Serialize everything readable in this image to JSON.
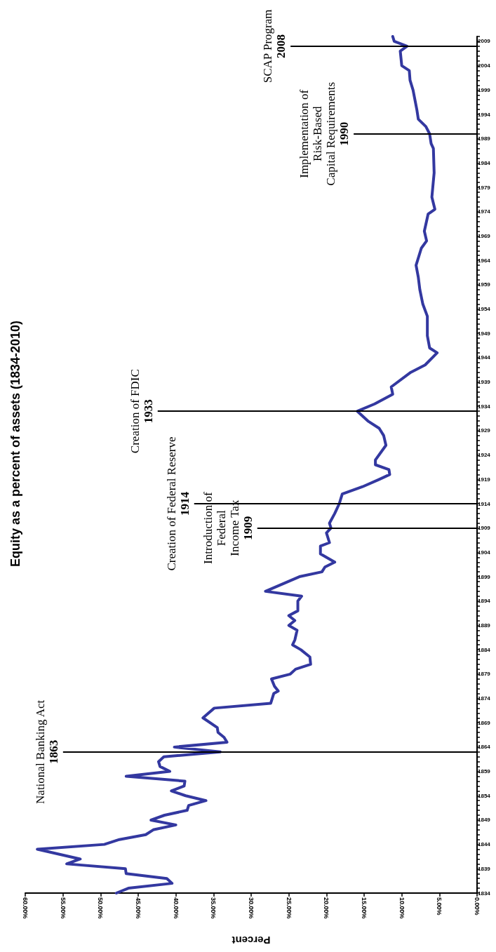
{
  "chart_data": {
    "type": "line",
    "title": "Equity as a percent of assets (1834-2010)",
    "xlabel": "Percent",
    "ylim": [
      1834,
      2010
    ],
    "yticks": [
      1834,
      1839,
      1844,
      1849,
      1854,
      1859,
      1864,
      1869,
      1874,
      1879,
      1884,
      1889,
      1894,
      1899,
      1904,
      1909,
      1914,
      1919,
      1924,
      1929,
      1934,
      1939,
      1944,
      1949,
      1954,
      1959,
      1964,
      1969,
      1974,
      1979,
      1984,
      1989,
      1994,
      1999,
      2004,
      2009
    ],
    "xlim": [
      60,
      0
    ],
    "xticks": [
      {
        "value": 60,
        "label": "60.00%"
      },
      {
        "value": 55,
        "label": "55.00%"
      },
      {
        "value": 50,
        "label": "50.00%"
      },
      {
        "value": 45,
        "label": "45.00%"
      },
      {
        "value": 40,
        "label": "40.00%"
      },
      {
        "value": 35,
        "label": "35.00%"
      },
      {
        "value": 30,
        "label": "30.00%"
      },
      {
        "value": 25,
        "label": "25.00%"
      },
      {
        "value": 20,
        "label": "20.00%"
      },
      {
        "value": 15,
        "label": "15.00%"
      },
      {
        "value": 10,
        "label": "10.00%"
      },
      {
        "value": 5,
        "label": "5.00%"
      },
      {
        "value": 0,
        "label": "0.00%"
      }
    ],
    "grid": false,
    "marker": "none",
    "line_style": "solid",
    "series": [
      {
        "color": "#3338a0",
        "values": [
          1834,
          1835,
          1836,
          1837,
          1838,
          1839,
          1840,
          1841,
          1843,
          1844,
          1845,
          1846,
          1847,
          1848,
          1849,
          1850,
          1851,
          1852,
          1853,
          1854,
          1855,
          1856,
          1857,
          1858,
          1859,
          1860,
          1861,
          1862,
          1863,
          1864,
          1865,
          1866,
          1867,
          1868,
          1870,
          1872,
          1873,
          1875,
          1875.5,
          1876.5,
          1878,
          1879,
          1880,
          1881,
          1882.5,
          1884,
          1885,
          1886,
          1888,
          1889,
          1890,
          1891,
          1892,
          1894,
          1895,
          1896,
          1899,
          1900,
          1901,
          1902,
          1903.7,
          1905.3,
          1906,
          1908,
          1909,
          1910,
          1912,
          1914,
          1916,
          1917.5,
          1919,
          1920,
          1921,
          1922,
          1923,
          1926,
          1928,
          1929.5,
          1931,
          1933,
          1934.5,
          1936.5,
          1938,
          1941,
          1942.5,
          1945,
          1946,
          1948.5,
          1952.5,
          1955,
          1958,
          1960.5,
          1963,
          1966.5,
          1968,
          1970,
          1973.5,
          1974.5,
          1977,
          1982,
          1987,
          1988,
          1990,
          1991.5,
          1993,
          1995,
          1999,
          2001,
          2003,
          2004,
          2007,
          2008,
          2009,
          2010
        ],
        "x": [
          47.9,
          46.3,
          40.5,
          41.2,
          46.6,
          46.7,
          54.5,
          52.7,
          58.4,
          49.5,
          47.5,
          44.0,
          43.0,
          40.0,
          43.3,
          41.5,
          38.5,
          38.3,
          36.0,
          38.7,
          40.6,
          38.9,
          38.8,
          46.6,
          40.8,
          42.1,
          42.3,
          41.6,
          34.1,
          40.2,
          33.2,
          33.6,
          34.4,
          34.5,
          36.4,
          34.9,
          27.4,
          27.0,
          26.4,
          26.9,
          27.3,
          24.8,
          24.1,
          22.1,
          22.2,
          23.4,
          24.5,
          24.2,
          23.9,
          25.0,
          24.2,
          25.0,
          23.8,
          23.8,
          23.3,
          28.1,
          23.6,
          20.6,
          20.2,
          18.9,
          20.8,
          20.8,
          19.6,
          20.0,
          19.4,
          19.6,
          18.9,
          18.3,
          17.9,
          15.2,
          13.0,
          11.6,
          11.7,
          13.5,
          13.5,
          12.1,
          12.4,
          13.0,
          14.5,
          15.9,
          13.6,
          11.2,
          11.4,
          8.8,
          6.9,
          5.3,
          6.3,
          6.6,
          6.6,
          7.2,
          7.6,
          7.8,
          8.1,
          7.4,
          6.7,
          7.0,
          6.5,
          5.6,
          6.0,
          5.7,
          5.8,
          6.1,
          6.3,
          6.8,
          7.8,
          8.0,
          8.5,
          8.9,
          9.0,
          10.0,
          10.2,
          9.3,
          11.0,
          11.2
        ]
      }
    ],
    "ref_lines": [
      {
        "axis": "y",
        "value": 1863,
        "label": "National Banking Act\n1863",
        "color": "#000000"
      },
      {
        "axis": "y",
        "value": 1909,
        "label": "Introduction of\nFederal\nIncome Tax\n1909",
        "color": "#000000"
      },
      {
        "axis": "y",
        "value": 1914,
        "label": "Creation of Federal Reserve\n1914",
        "color": "#000000"
      },
      {
        "axis": "y",
        "value": 1933,
        "label": "Creation of FDIC\n1933",
        "color": "#000000"
      },
      {
        "axis": "y",
        "value": 1990,
        "label": "Implementation of\nRisk-Based\nCapital Requirements\n1990",
        "color": "#000000"
      },
      {
        "axis": "y",
        "value": 2008,
        "label": "SCAP Program\n2008",
        "color": "#000000"
      }
    ]
  }
}
